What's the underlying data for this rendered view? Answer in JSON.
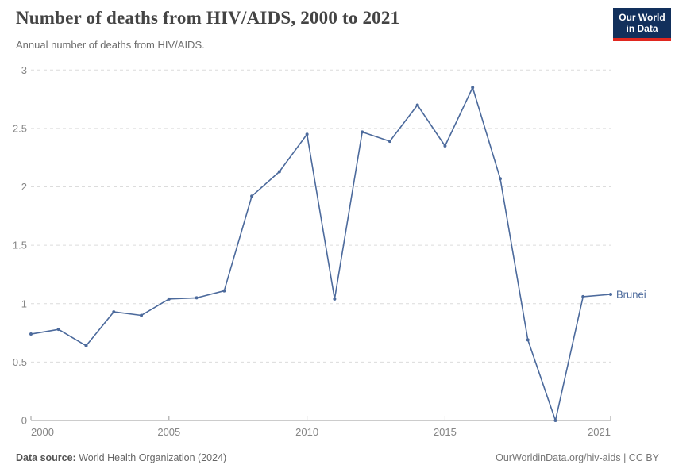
{
  "header": {
    "title": "Number of deaths from HIV/AIDS, 2000 to 2021",
    "subtitle": "Annual number of deaths from HIV/AIDS.",
    "logo": {
      "line1": "Our World",
      "line2": "in Data"
    }
  },
  "footer": {
    "source_label": "Data source:",
    "source_value": "World Health Organization (2024)",
    "right": "OurWorldinData.org/hiv-aids | CC BY"
  },
  "chart_data": {
    "type": "line",
    "title": "Number of deaths from HIV/AIDS, 2000 to 2021",
    "subtitle": "Annual number of deaths from HIV/AIDS.",
    "xlabel": "",
    "ylabel": "",
    "xlim": [
      2000,
      2021
    ],
    "ylim": [
      0,
      3
    ],
    "xticks": [
      2000,
      2005,
      2010,
      2015,
      2021
    ],
    "yticks": [
      0,
      0.5,
      1,
      1.5,
      2,
      2.5,
      3
    ],
    "grid": "horizontal-dashed",
    "legend_position": "end-of-line-label",
    "series": [
      {
        "name": "Brunei",
        "color": "#4c6a9c",
        "x": [
          2000,
          2001,
          2002,
          2003,
          2004,
          2005,
          2006,
          2007,
          2008,
          2009,
          2010,
          2011,
          2012,
          2013,
          2014,
          2015,
          2016,
          2017,
          2018,
          2019,
          2020,
          2021
        ],
        "values": [
          0.74,
          0.78,
          0.64,
          0.93,
          0.9,
          1.04,
          1.05,
          1.11,
          1.92,
          2.13,
          2.45,
          1.04,
          2.47,
          2.39,
          2.7,
          2.35,
          2.85,
          2.07,
          0.69,
          0,
          1.06,
          1.08
        ]
      }
    ]
  },
  "colors": {
    "accent": "#4c6a9c",
    "grid": "#dcdcdc",
    "axis": "#9a9a9a",
    "tick_label": "#858585",
    "logo_bg": "#12305c",
    "logo_red": "#e0271f"
  }
}
